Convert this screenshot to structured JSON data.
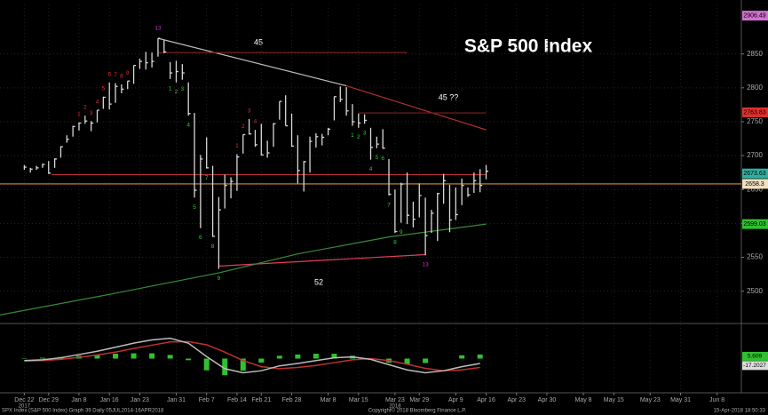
{
  "chart_data": {
    "type": "hlc",
    "title": "S&P 500 Index",
    "annotations": [
      "45",
      "45 ??",
      "52"
    ],
    "footer": {
      "left": "SPX Index (S&P 500 Index) Graph 39  Daily 05JUL2014-16APR2018",
      "center": "Copyright© 2018 Bloomberg Finance L.P.",
      "right": "15-Apr-2018 18:50:33"
    },
    "xlim": [
      -4,
      118
    ],
    "xticks": [
      {
        "value": 0,
        "label": "Dec 22"
      },
      {
        "value": 4,
        "label": "Dec 29"
      },
      {
        "value": 9,
        "label": "Jan 8"
      },
      {
        "value": 14,
        "label": "Jan 16"
      },
      {
        "value": 19,
        "label": "Jan 23"
      },
      {
        "value": 25,
        "label": "Jan 31"
      },
      {
        "value": 30,
        "label": "Feb 7"
      },
      {
        "value": 35,
        "label": "Feb 14"
      },
      {
        "value": 39,
        "label": "Feb 21"
      },
      {
        "value": 44,
        "label": "Feb 28"
      },
      {
        "value": 50,
        "label": "Mar 8"
      },
      {
        "value": 55,
        "label": "Mar 15"
      },
      {
        "value": 61,
        "label": "Mar 23"
      },
      {
        "value": 65,
        "label": "Mar 29"
      },
      {
        "value": 71,
        "label": "Apr 9"
      },
      {
        "value": 76,
        "label": "Apr 16"
      },
      {
        "value": 81,
        "label": "Apr 23"
      },
      {
        "value": 86,
        "label": "Apr 30"
      },
      {
        "value": 92,
        "label": "May 8"
      },
      {
        "value": 97,
        "label": "May 15"
      },
      {
        "value": 103,
        "label": "May 23"
      },
      {
        "value": 108,
        "label": "May 31"
      },
      {
        "value": 114,
        "label": "Jun 8"
      }
    ],
    "year_labels": [
      {
        "value": 0,
        "label": "2017"
      },
      {
        "value": 61,
        "label": "2018"
      }
    ],
    "ylim": [
      2455,
      2923
    ],
    "yticks": [
      2500,
      2550,
      2600,
      2650,
      2700,
      2750,
      2800,
      2850
    ],
    "grid": true,
    "bars": {
      "color": "#d8d8d8",
      "x": [
        0,
        1,
        2,
        3,
        4,
        5,
        6,
        7,
        8,
        9,
        10,
        11,
        12,
        13,
        14,
        15,
        16,
        17,
        18,
        19,
        20,
        21,
        22,
        23,
        24,
        25,
        26,
        27,
        28,
        29,
        30,
        31,
        32,
        33,
        34,
        35,
        36,
        37,
        38,
        39,
        40,
        41,
        42,
        43,
        44,
        45,
        46,
        47,
        48,
        49,
        50,
        51,
        52,
        53,
        54,
        55,
        56,
        57,
        58,
        59,
        60,
        61,
        62,
        63,
        64,
        65,
        66,
        67,
        68,
        69,
        70,
        71,
        72,
        73,
        74,
        75,
        76
      ],
      "high": [
        2686,
        2682,
        2685,
        2688,
        2692,
        2696,
        2714,
        2730,
        2744,
        2749,
        2759,
        2751,
        2767,
        2787,
        2808,
        2807,
        2805,
        2810,
        2833,
        2843,
        2853,
        2852,
        2873,
        2870,
        2838,
        2840,
        2835,
        2808,
        2763,
        2701,
        2727,
        2685,
        2639,
        2672,
        2668,
        2702,
        2731,
        2754,
        2738,
        2747,
        2722,
        2748,
        2780,
        2789,
        2762,
        2730,
        2692,
        2728,
        2733,
        2732,
        2741,
        2787,
        2802,
        2801,
        2776,
        2762,
        2761,
        2741,
        2728,
        2739,
        2695,
        2650,
        2660,
        2675,
        2632,
        2659,
        2638,
        2620,
        2645,
        2673,
        2657,
        2653,
        2666,
        2653,
        2675,
        2680,
        2686
      ],
      "low": [
        2679,
        2675,
        2679,
        2682,
        2673,
        2682,
        2697,
        2719,
        2728,
        2737,
        2747,
        2736,
        2749,
        2769,
        2768,
        2778,
        2792,
        2798,
        2806,
        2828,
        2827,
        2830,
        2846,
        2851,
        2813,
        2808,
        2812,
        2759,
        2638,
        2593,
        2681,
        2580,
        2533,
        2622,
        2637,
        2648,
        2703,
        2731,
        2713,
        2700,
        2697,
        2713,
        2753,
        2744,
        2713,
        2659,
        2647,
        2675,
        2712,
        2715,
        2730,
        2752,
        2779,
        2759,
        2744,
        2741,
        2747,
        2694,
        2711,
        2710,
        2641,
        2586,
        2601,
        2599,
        2594,
        2609,
        2553,
        2586,
        2574,
        2629,
        2587,
        2605,
        2627,
        2639,
        2645,
        2646,
        2665
      ],
      "close": [
        2683,
        2680,
        2682,
        2687,
        2674,
        2695,
        2713,
        2724,
        2743,
        2748,
        2751,
        2748,
        2767,
        2786,
        2776,
        2802,
        2798,
        2810,
        2833,
        2839,
        2837,
        2839,
        2873,
        2853,
        2822,
        2824,
        2822,
        2762,
        2649,
        2695,
        2682,
        2581,
        2620,
        2656,
        2662,
        2698,
        2731,
        2732,
        2716,
        2701,
        2704,
        2747,
        2780,
        2744,
        2714,
        2678,
        2691,
        2721,
        2728,
        2727,
        2739,
        2787,
        2783,
        2766,
        2750,
        2748,
        2752,
        2712,
        2717,
        2711,
        2643,
        2588,
        2658,
        2612,
        2606,
        2641,
        2582,
        2615,
        2644,
        2663,
        2605,
        2613,
        2656,
        2642,
        2663,
        2656,
        2677
      ]
    },
    "lines": [
      {
        "x": [
          22,
          53
        ],
        "y": [
          2873,
          2803
        ],
        "color": "#bbbbbb"
      },
      {
        "x": [
          53,
          76
        ],
        "y": [
          2803,
          2738
        ],
        "color": "#b03030"
      },
      {
        "x": [
          4.5,
          76
        ],
        "y": [
          2672,
          2672
        ],
        "color": "#b03030"
      },
      {
        "x": [
          22,
          63
        ],
        "y": [
          2852,
          2852
        ],
        "color": "#7a2020"
      },
      {
        "x": [
          55,
          76
        ],
        "y": [
          2763,
          2763
        ],
        "color": "#7a2020"
      },
      {
        "x": [
          32,
          66
        ],
        "y": [
          2537,
          2554
        ],
        "color": "#e0405a"
      },
      {
        "x": [
          -4,
          15,
          32,
          45,
          60,
          76
        ],
        "y": [
          2465,
          2497,
          2527,
          2555,
          2580,
          2599
        ],
        "color": "#3a8a3a"
      },
      {
        "x": [
          -4,
          118
        ],
        "y": [
          2658.3,
          2658.3
        ],
        "color": "#d09040"
      }
    ],
    "price_tags": [
      {
        "value": 2906.49,
        "color": "#d070d0"
      },
      {
        "value": 2763.83,
        "color": "#e03030"
      },
      {
        "value": 2673.63,
        "color": "#30b0a0"
      },
      {
        "value": 2658.3,
        "color": "#f0e0c0"
      },
      {
        "value": 2599.03,
        "color": "#30c030"
      }
    ],
    "td_counts": {
      "x": [
        9,
        10,
        11,
        12,
        13,
        14,
        15,
        16,
        17,
        22,
        24,
        25,
        26,
        27,
        28,
        29,
        30,
        31,
        32,
        35,
        36,
        37,
        38,
        54,
        55,
        56,
        57,
        58,
        59,
        60,
        61,
        62,
        66
      ],
      "y": [
        2761,
        2771,
        2763,
        2779,
        2799,
        2820,
        2819,
        2817,
        2822,
        2888,
        2799,
        2794,
        2798,
        2745,
        2624,
        2579,
        2667,
        2566,
        2519,
        2714,
        2743,
        2766,
        2750,
        2730,
        2727,
        2733,
        2680,
        2697,
        2696,
        2627,
        2572,
        2587,
        2539
      ],
      "labels": [
        1,
        2,
        3,
        4,
        5,
        6,
        7,
        8,
        9,
        13,
        1,
        2,
        3,
        4,
        5,
        6,
        7,
        8,
        9,
        1,
        2,
        3,
        4,
        1,
        2,
        3,
        4,
        5,
        6,
        7,
        8,
        9,
        13
      ],
      "colors": [
        "#e03030",
        "#e03030",
        "#e03030",
        "#e03030",
        "#e03030",
        "#e03030",
        "#e03030",
        "#e03030",
        "#e03030",
        "#cc33cc",
        "#33cc33",
        "#33cc33",
        "#33cc33",
        "#33cc33",
        "#33cc33",
        "#33cc33",
        "#33cc33",
        "#33cc33",
        "#33cc33",
        "#e03030",
        "#e03030",
        "#e03030",
        "#e03030",
        "#33cc33",
        "#33cc33",
        "#33cc33",
        "#33cc33",
        "#33cc33",
        "#33cc33",
        "#33cc33",
        "#33cc33",
        "#33cc33",
        "#cc33cc"
      ]
    },
    "oscillator": {
      "ylim": [
        -80,
        80
      ],
      "x": [
        0,
        3,
        6,
        9,
        12,
        15,
        18,
        21,
        24,
        27,
        30,
        33,
        36,
        39,
        42,
        45,
        48,
        51,
        54,
        57,
        60,
        63,
        66,
        69,
        72,
        75
      ],
      "macd": {
        "color": "#bbbbbb",
        "values": [
          -5,
          -3,
          2,
          10,
          18,
          28,
          38,
          46,
          50,
          38,
          5,
          -25,
          -35,
          -30,
          -18,
          -12,
          -5,
          2,
          4,
          -2,
          -15,
          -28,
          -35,
          -30,
          -20,
          -12
        ]
      },
      "signal": {
        "color": "#c03030",
        "values": [
          -6,
          -5,
          -2,
          3,
          9,
          16,
          25,
          33,
          41,
          42,
          34,
          16,
          -5,
          -20,
          -25,
          -22,
          -17,
          -10,
          -3,
          0,
          -5,
          -14,
          -24,
          -30,
          -28,
          -22
        ]
      },
      "histogram": {
        "color": "#30c030",
        "values": [
          1,
          2,
          4,
          7,
          9,
          12,
          13,
          13,
          9,
          -4,
          -29,
          -41,
          -30,
          -10,
          7,
          10,
          12,
          12,
          7,
          -2,
          -10,
          -14,
          -11,
          0,
          8,
          10
        ]
      },
      "tags": [
        {
          "value": 5.609,
          "color": "#30c030"
        },
        {
          "value": -17.2027,
          "color": "#dddddd"
        }
      ]
    }
  }
}
